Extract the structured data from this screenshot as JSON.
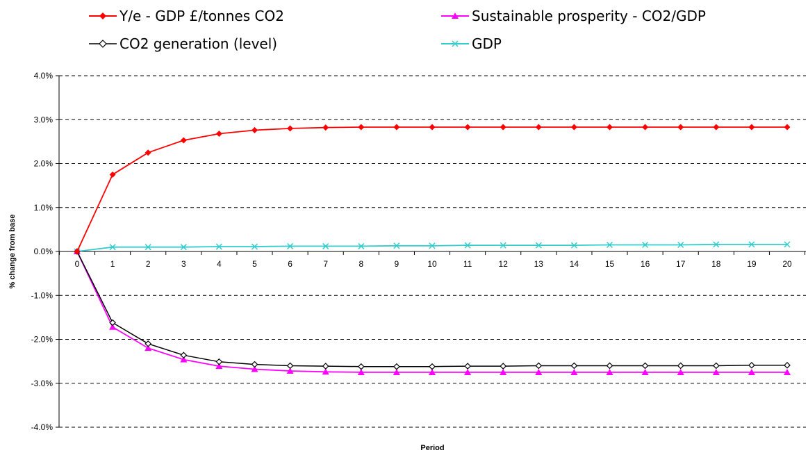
{
  "chart_data": {
    "type": "line",
    "title": "",
    "xlabel": "Period",
    "ylabel": "% change from base",
    "ylim": [
      -4.0,
      4.0
    ],
    "y_ticks": [
      "4.0%",
      "3.0%",
      "2.0%",
      "1.0%",
      "0.0%",
      "-1.0%",
      "-2.0%",
      "-3.0%",
      "-4.0%"
    ],
    "grid": "horizontal dashed",
    "legend_position": "top",
    "categories": [
      "0",
      "1",
      "2",
      "3",
      "4",
      "5",
      "6",
      "7",
      "8",
      "9",
      "10",
      "11",
      "12",
      "13",
      "14",
      "15",
      "16",
      "17",
      "18",
      "19",
      "20"
    ],
    "series": [
      {
        "name": "Y/e  - GDP £/tonnes CO2",
        "color": "#ff0000",
        "marker": "diamond-filled",
        "values": [
          0.0,
          1.75,
          2.25,
          2.53,
          2.68,
          2.76,
          2.8,
          2.82,
          2.83,
          2.83,
          2.83,
          2.83,
          2.83,
          2.83,
          2.83,
          2.83,
          2.83,
          2.83,
          2.83,
          2.83,
          2.83
        ]
      },
      {
        "name": "Sustainable prosperity - CO2/GDP",
        "color": "#ff00ff",
        "marker": "triangle",
        "values": [
          0.0,
          -1.72,
          -2.2,
          -2.46,
          -2.61,
          -2.68,
          -2.72,
          -2.74,
          -2.75,
          -2.75,
          -2.75,
          -2.75,
          -2.75,
          -2.75,
          -2.75,
          -2.75,
          -2.75,
          -2.75,
          -2.75,
          -2.75,
          -2.75
        ]
      },
      {
        "name": "CO2 generation (level)",
        "color": "#000000",
        "marker": "diamond-open",
        "values": [
          0.0,
          -1.62,
          -2.1,
          -2.36,
          -2.51,
          -2.57,
          -2.6,
          -2.61,
          -2.62,
          -2.62,
          -2.62,
          -2.61,
          -2.61,
          -2.6,
          -2.6,
          -2.6,
          -2.6,
          -2.6,
          -2.6,
          -2.59,
          -2.59
        ]
      },
      {
        "name": "GDP",
        "color": "#33cccc",
        "marker": "x",
        "values": [
          0.0,
          0.1,
          0.1,
          0.1,
          0.11,
          0.11,
          0.12,
          0.12,
          0.12,
          0.13,
          0.13,
          0.14,
          0.14,
          0.14,
          0.14,
          0.15,
          0.15,
          0.15,
          0.16,
          0.16,
          0.16
        ]
      }
    ]
  }
}
